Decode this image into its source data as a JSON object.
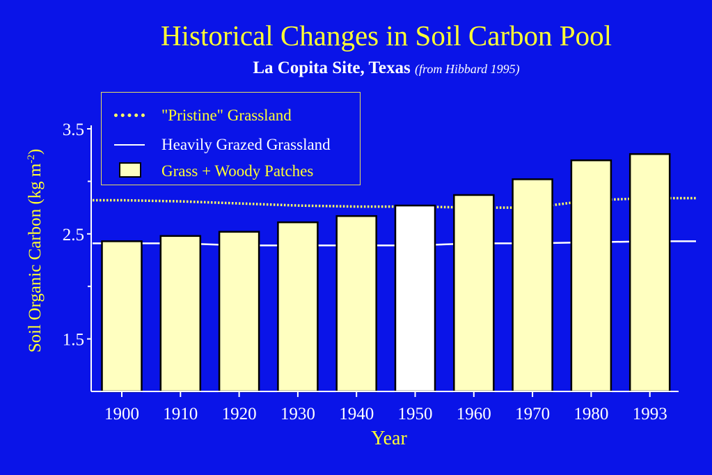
{
  "header": {
    "title": "Historical Changes in Soil Carbon Pool",
    "subtitle": "La Copita Site, Texas",
    "source": "(from Hibbard 1995)"
  },
  "legend": {
    "pristine": "\"Pristine\" Grassland",
    "grazed": "Heavily Grazed Grassland",
    "woody": "Grass + Woody Patches"
  },
  "axes": {
    "ylabel_main": "Soil Organic Carbon (kg m",
    "ylabel_sup": "-2",
    "ylabel_end": ")",
    "xlabel": "Year"
  },
  "colors": {
    "background": "#0a14e8",
    "title": "#ffff33",
    "bar_fill": "#ffffc0",
    "highlight_bar": "#ffffff",
    "pristine_line": "#ffff66",
    "grazed_line": "#ffffff"
  },
  "chart_data": {
    "type": "bar",
    "categories": [
      "1900",
      "1910",
      "1920",
      "1930",
      "1940",
      "1950",
      "1960",
      "1970",
      "1980",
      "1993"
    ],
    "series": [
      {
        "name": "Grass + Woody Patches",
        "values": [
          2.43,
          2.48,
          2.52,
          2.61,
          2.67,
          2.77,
          2.87,
          3.02,
          3.2,
          3.26
        ]
      }
    ],
    "highlight_category": "1950",
    "reference_lines": [
      {
        "name": "\"Pristine\" Grassland",
        "style": "dotted",
        "values": [
          2.82,
          2.81,
          2.79,
          2.77,
          2.76,
          2.76,
          2.75,
          2.75,
          2.82,
          2.84
        ]
      },
      {
        "name": "Heavily Grazed Grassland",
        "style": "solid",
        "values": [
          2.41,
          2.41,
          2.39,
          2.39,
          2.39,
          2.39,
          2.41,
          2.41,
          2.42,
          2.43
        ]
      }
    ],
    "yticks": [
      3.5,
      2.5,
      1.5
    ],
    "yticks_minor": [
      3.0,
      2.0
    ],
    "ylim": [
      1.0,
      3.5
    ],
    "xlabel": "Year",
    "ylabel": "Soil Organic Carbon (kg m-2)"
  }
}
